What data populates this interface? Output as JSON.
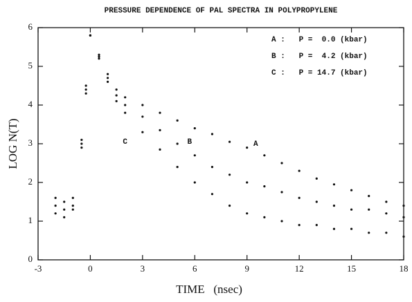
{
  "chart_data": {
    "type": "scatter",
    "title": "PRESSURE DEPENDENCE OF PAL SPECTRA IN POLYPROPYLENE",
    "xlabel": "TIME   (nsec)",
    "ylabel": "LOG N(T)",
    "xlim": [
      -3,
      18
    ],
    "xticks": [
      -3,
      0,
      3,
      6,
      9,
      12,
      15,
      18
    ],
    "ylim": [
      0,
      6
    ],
    "yticks": [
      0,
      1,
      2,
      3,
      4,
      5,
      6
    ],
    "x": [
      -2,
      -1.5,
      -1,
      -0.5,
      -0.25,
      0,
      0.5,
      1,
      1.5,
      2,
      3,
      4,
      5,
      6,
      7,
      8,
      9,
      10,
      11,
      12,
      13,
      14,
      15,
      16,
      17,
      18
    ],
    "series": [
      {
        "name": "A :   P =  0.0 (kbar)",
        "color": "#111111",
        "values": [
          1.4,
          1.3,
          1.6,
          3.0,
          4.4,
          5.8,
          5.3,
          4.8,
          4.4,
          4.2,
          4.0,
          3.8,
          3.6,
          3.4,
          3.25,
          3.05,
          2.9,
          2.7,
          2.5,
          2.3,
          2.1,
          1.95,
          1.8,
          1.65,
          1.5,
          1.4
        ]
      },
      {
        "name": "B :   P =  4.2 (kbar)",
        "color": "#111111",
        "values": [
          1.2,
          1.5,
          1.4,
          3.1,
          4.5,
          5.8,
          5.25,
          4.7,
          4.25,
          4.0,
          3.7,
          3.35,
          3.0,
          2.7,
          2.4,
          2.2,
          2.0,
          1.9,
          1.75,
          1.6,
          1.5,
          1.4,
          1.3,
          1.3,
          1.2,
          1.1
        ]
      },
      {
        "name": "C :   P = 14.7 (kbar)",
        "color": "#111111",
        "values": [
          1.6,
          1.1,
          1.3,
          2.9,
          4.3,
          5.8,
          5.2,
          4.6,
          4.1,
          3.8,
          3.3,
          2.85,
          2.4,
          2.0,
          1.7,
          1.4,
          1.2,
          1.1,
          1.0,
          0.9,
          0.9,
          0.8,
          0.8,
          0.7,
          0.7,
          0.6
        ]
      }
    ],
    "annotations": [
      {
        "text": "A",
        "x": 9.5,
        "y": 3.0
      },
      {
        "text": "B",
        "x": 5.7,
        "y": 3.05
      },
      {
        "text": "C",
        "x": 2.0,
        "y": 3.05
      }
    ]
  }
}
